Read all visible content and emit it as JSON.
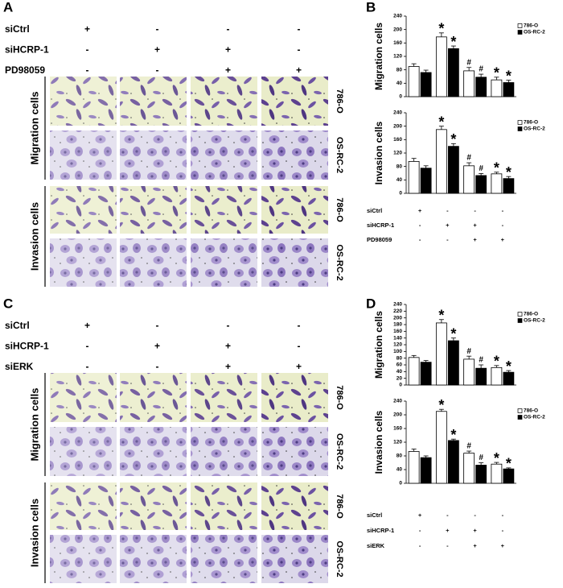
{
  "image_panels": [
    {
      "letter": "A",
      "conditions": [
        {
          "label": "siCtrl",
          "signs": [
            "+",
            "-",
            "-",
            "-"
          ]
        },
        {
          "label": "siHCRP-1",
          "signs": [
            "-",
            "+",
            "+",
            "-"
          ]
        },
        {
          "label": "PD98059",
          "signs": [
            "-",
            "-",
            "+",
            "+"
          ]
        }
      ],
      "groups": [
        {
          "label": "Migration cells",
          "rows": [
            "786-O",
            "OS-RC-2"
          ]
        },
        {
          "label": "Invasion cells",
          "rows": [
            "786-O",
            "OS-RC-2"
          ]
        }
      ]
    },
    {
      "letter": "C",
      "conditions": [
        {
          "label": "siCtrl",
          "signs": [
            "+",
            "-",
            "-",
            "-"
          ]
        },
        {
          "label": "siHCRP-1",
          "signs": [
            "-",
            "+",
            "+",
            "-"
          ]
        },
        {
          "label": "siERK",
          "signs": [
            "-",
            "-",
            "+",
            "+"
          ]
        }
      ],
      "groups": [
        {
          "label": "Migration cells",
          "rows": [
            "786-O",
            "OS-RC-2"
          ]
        },
        {
          "label": "Invasion cells",
          "rows": [
            "786-O",
            "OS-RC-2"
          ]
        }
      ]
    }
  ],
  "chart_panels": [
    {
      "letter": "B",
      "conditions": [
        {
          "label": "siCtrl",
          "signs": [
            "+",
            "-",
            "-",
            "-"
          ]
        },
        {
          "label": "siHCRP-1",
          "signs": [
            "-",
            "+",
            "+",
            "-"
          ]
        },
        {
          "label": "PD98059",
          "signs": [
            "-",
            "-",
            "+",
            "+"
          ]
        }
      ]
    },
    {
      "letter": "D",
      "conditions": [
        {
          "label": "siCtrl",
          "signs": [
            "+",
            "-",
            "-",
            "-"
          ]
        },
        {
          "label": "siHCRP-1",
          "signs": [
            "-",
            "+",
            "+",
            "-"
          ]
        },
        {
          "label": "siERK",
          "signs": [
            "-",
            "-",
            "+",
            "+"
          ]
        }
      ]
    }
  ],
  "chart_data": [
    {
      "type": "bar",
      "ylabel": "Migration cells",
      "categories": [
        null,
        null,
        null,
        null
      ],
      "ylim": [
        0,
        240
      ],
      "yticks": [
        0,
        40,
        80,
        120,
        160,
        200,
        240
      ],
      "legend": "upper right",
      "series": [
        {
          "name": "786-O",
          "color": "#ffffff",
          "values": [
            90,
            178,
            77,
            50
          ],
          "errors": [
            8,
            12,
            10,
            8
          ],
          "marks": [
            null,
            "*",
            "#",
            "*"
          ]
        },
        {
          "name": "OS-RC-2",
          "color": "#000000",
          "values": [
            72,
            143,
            58,
            42
          ],
          "errors": [
            7,
            8,
            9,
            7
          ],
          "marks": [
            null,
            "*",
            "#",
            "*"
          ]
        }
      ]
    },
    {
      "type": "bar",
      "ylabel": "Invasion cells",
      "categories": [
        null,
        null,
        null,
        null
      ],
      "ylim": [
        0,
        240
      ],
      "yticks": [
        0,
        40,
        80,
        120,
        160,
        200,
        240
      ],
      "legend": "upper right",
      "series": [
        {
          "name": "786-O",
          "color": "#ffffff",
          "values": [
            95,
            190,
            82,
            58
          ],
          "errors": [
            9,
            10,
            9,
            5
          ],
          "marks": [
            null,
            "*",
            "#",
            "*"
          ]
        },
        {
          "name": "OS-RC-2",
          "color": "#000000",
          "values": [
            75,
            140,
            53,
            44
          ],
          "errors": [
            7,
            8,
            6,
            6
          ],
          "marks": [
            null,
            "*",
            "#",
            "*"
          ]
        }
      ]
    },
    {
      "type": "bar",
      "ylabel": "Migration cells",
      "categories": [
        null,
        null,
        null,
        null
      ],
      "ylim": [
        0,
        240
      ],
      "yticks": [
        0,
        20,
        40,
        60,
        80,
        100,
        120,
        140,
        160,
        180,
        200,
        220,
        240
      ],
      "legend": "upper right",
      "series": [
        {
          "name": "786-O",
          "color": "#ffffff",
          "values": [
            82,
            185,
            77,
            52
          ],
          "errors": [
            6,
            10,
            9,
            6
          ],
          "marks": [
            null,
            "*",
            "#",
            "*"
          ]
        },
        {
          "name": "OS-RC-2",
          "color": "#000000",
          "values": [
            68,
            132,
            50,
            38
          ],
          "errors": [
            5,
            8,
            10,
            5
          ],
          "marks": [
            null,
            "*",
            "#",
            "*"
          ]
        }
      ]
    },
    {
      "type": "bar",
      "ylabel": "Invasion cells",
      "categories": [
        null,
        null,
        null,
        null
      ],
      "ylim": [
        0,
        240
      ],
      "yticks": [
        0,
        40,
        80,
        120,
        160,
        200,
        240
      ],
      "legend": "upper right",
      "series": [
        {
          "name": "786-O",
          "color": "#ffffff",
          "values": [
            93,
            210,
            88,
            56
          ],
          "errors": [
            7,
            6,
            6,
            5
          ],
          "marks": [
            null,
            "*",
            "#",
            "*"
          ]
        },
        {
          "name": "OS-RC-2",
          "color": "#000000",
          "values": [
            75,
            125,
            53,
            42
          ],
          "errors": [
            5,
            4,
            7,
            3
          ],
          "marks": [
            null,
            "*",
            "#",
            "*"
          ]
        }
      ]
    }
  ]
}
